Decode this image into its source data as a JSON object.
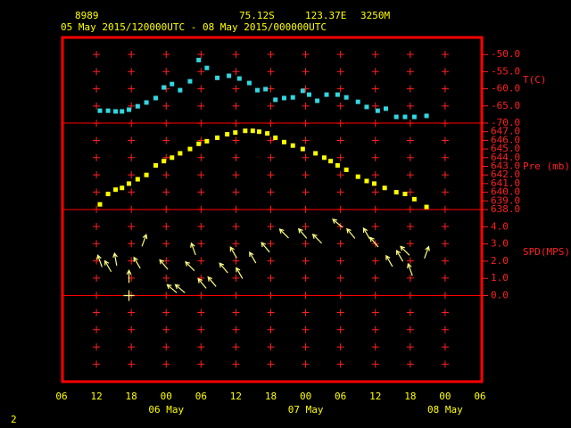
{
  "header": {
    "station": "8989",
    "lat": "75.12S",
    "lon": "123.37E",
    "elevation": "3250M",
    "period": "05 May 2015/120000UTC - 08 May 2015/000000UTC"
  },
  "footer": "2",
  "chart_data": [
    {
      "type": "scatter",
      "y_label": "T(C)",
      "color": "#33d6e0",
      "ylim": [
        -70,
        -45
      ],
      "yticks": [
        {
          "value": -50,
          "label": "-50.0"
        },
        {
          "value": -55,
          "label": "-55.0"
        },
        {
          "value": -60,
          "label": "-60.0"
        },
        {
          "value": -65,
          "label": "-65.0"
        },
        {
          "value": -70,
          "label": "-70.0"
        }
      ],
      "x": [
        12.6,
        14.0,
        15.3,
        16.4,
        17.6,
        19.1,
        20.6,
        22.2,
        23.6,
        25.0,
        26.4,
        28.1,
        29.6,
        31.0,
        32.8,
        34.8,
        36.6,
        38.3,
        39.7,
        41.1,
        42.8,
        44.3,
        45.8,
        47.5,
        48.6,
        50.0,
        51.6,
        53.5,
        55.0,
        57.0,
        58.5,
        60.4,
        61.8,
        63.6,
        65.1,
        66.7,
        68.8
      ],
      "values": [
        -66.4,
        -66.4,
        -66.6,
        -66.6,
        -66.1,
        -65.1,
        -64.0,
        -62.7,
        -59.6,
        -58.6,
        -60.4,
        -57.8,
        -51.6,
        -53.9,
        -56.8,
        -56.2,
        -57.0,
        -58.3,
        -60.4,
        -60.1,
        -63.2,
        -62.7,
        -62.5,
        -60.6,
        -61.7,
        -63.5,
        -61.7,
        -61.7,
        -62.5,
        -63.8,
        -65.3,
        -66.4,
        -65.8,
        -68.2,
        -68.2,
        -68.2,
        -67.9
      ]
    },
    {
      "type": "scatter",
      "y_label": "Pre (mb)",
      "color": "#ffff00",
      "ylim": [
        638,
        648
      ],
      "yticks": [
        {
          "value": 647,
          "label": "647.0"
        },
        {
          "value": 646,
          "label": "646.0"
        },
        {
          "value": 645,
          "label": "645.0"
        },
        {
          "value": 644,
          "label": "644.0"
        },
        {
          "value": 643,
          "label": "643.0"
        },
        {
          "value": 642,
          "label": "642.0"
        },
        {
          "value": 641,
          "label": "641.0"
        },
        {
          "value": 640,
          "label": "640.0"
        },
        {
          "value": 639,
          "label": "639.0"
        },
        {
          "value": 638,
          "label": "638.0"
        }
      ],
      "x": [
        12.6,
        14.0,
        15.3,
        16.4,
        17.6,
        19.1,
        20.6,
        22.2,
        23.6,
        25.0,
        26.4,
        28.1,
        29.6,
        31.0,
        32.8,
        34.5,
        35.9,
        37.6,
        38.9,
        40.0,
        41.4,
        42.8,
        44.3,
        45.8,
        47.5,
        49.7,
        51.2,
        52.3,
        53.5,
        55.0,
        57.0,
        58.5,
        59.8,
        61.6,
        63.6,
        65.1,
        66.7,
        68.8
      ],
      "values": [
        638.6,
        639.8,
        640.3,
        640.5,
        641.0,
        641.5,
        642.0,
        643.1,
        643.6,
        644.0,
        644.5,
        645.0,
        645.6,
        645.9,
        646.3,
        646.7,
        646.9,
        647.1,
        647.1,
        647.0,
        646.8,
        646.3,
        645.8,
        645.4,
        645.0,
        644.5,
        644.0,
        643.6,
        643.1,
        642.6,
        641.8,
        641.3,
        641.0,
        640.5,
        640.0,
        639.8,
        639.2,
        638.3
      ]
    },
    {
      "type": "wind",
      "y_label": "SPD(MPS)",
      "color": "#ffff80",
      "ylim": [
        -5,
        5
      ],
      "yticks": [
        {
          "value": 4,
          "label": "4.0"
        },
        {
          "value": 3,
          "label": "3.0"
        },
        {
          "value": 2,
          "label": "2.0"
        },
        {
          "value": 1,
          "label": "1.0"
        },
        {
          "value": 0,
          "label": "0.0"
        }
      ],
      "xlim": [
        6,
        78
      ],
      "xticks": [
        {
          "value": 6,
          "label": "06"
        },
        {
          "value": 12,
          "label": "12"
        },
        {
          "value": 18,
          "label": "18"
        },
        {
          "value": 24,
          "label": "00"
        },
        {
          "value": 30,
          "label": "06"
        },
        {
          "value": 36,
          "label": "12"
        },
        {
          "value": 42,
          "label": "18"
        },
        {
          "value": 48,
          "label": "00"
        },
        {
          "value": 54,
          "label": "06"
        },
        {
          "value": 60,
          "label": "12"
        },
        {
          "value": 66,
          "label": "18"
        },
        {
          "value": 72,
          "label": "00"
        },
        {
          "value": 78,
          "label": "06"
        }
      ],
      "day_labels": [
        {
          "value": 24,
          "label": "06 May"
        },
        {
          "value": 48,
          "label": "07 May"
        },
        {
          "value": 72,
          "label": "08 May"
        }
      ],
      "x": [
        12.6,
        14.0,
        15.3,
        17.6,
        17.6,
        19.0,
        20.2,
        23.6,
        25.0,
        26.4,
        28.1,
        28.7,
        30.2,
        31.9,
        33.9,
        35.6,
        36.6,
        38.9,
        41.1,
        44.3,
        47.5,
        50.0,
        53.5,
        55.8,
        58.5,
        59.8,
        62.4,
        64.2,
        65.1,
        66.0,
        68.8
      ],
      "values": [
        2.0,
        1.7,
        2.1,
        1.1,
        0.0,
        1.9,
        3.2,
        1.8,
        0.4,
        0.4,
        1.7,
        2.7,
        0.7,
        0.8,
        1.6,
        2.5,
        1.3,
        2.2,
        2.8,
        3.6,
        3.6,
        3.3,
        4.2,
        3.6,
        3.6,
        3.1,
        2.0,
        2.3,
        2.6,
        1.5,
        2.5
      ],
      "direction": [
        340,
        330,
        350,
        0,
        null,
        330,
        20,
        320,
        310,
        310,
        315,
        340,
        320,
        320,
        320,
        330,
        330,
        330,
        320,
        315,
        320,
        315,
        310,
        320,
        330,
        320,
        330,
        330,
        315,
        340,
        20
      ]
    }
  ]
}
